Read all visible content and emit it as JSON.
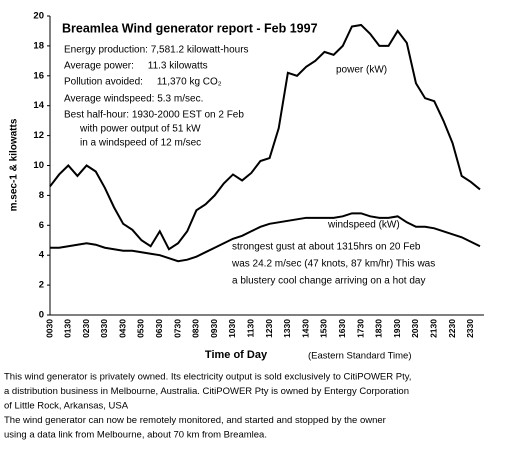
{
  "chart_data": {
    "type": "line",
    "title": "Breamlea Wind generator report - Feb 1997",
    "info_lines": [
      "Energy production: 7,581.2 kilowatt-hours",
      "Average power:     11.3 kilowatts",
      "Pollution avoided:     11,370 kg CO₂",
      "Average windspeed: 5.3 m/sec.",
      "Best half-hour: 1930-2000 EST on 2 Feb",
      "with power output of 51 kW",
      "in a windspeed of 12 m/sec"
    ],
    "y_label": "m.sec-1 & kilowatts",
    "x_label": "Time of Day",
    "x_sublabel": "(Eastern Standard Time)",
    "categories": [
      "0030",
      null,
      "0130",
      null,
      "0230",
      null,
      "0330",
      null,
      "0430",
      null,
      "0530",
      null,
      "0630",
      null,
      "0730",
      null,
      "0830",
      null,
      "0930",
      null,
      "1030",
      null,
      "1130",
      null,
      "1230",
      null,
      "1330",
      null,
      "1430",
      null,
      "1530",
      null,
      "1630",
      null,
      "1730",
      null,
      "1830",
      null,
      "1930",
      null,
      "2030",
      null,
      "2130",
      null,
      "2230",
      null,
      "2330",
      null
    ],
    "series": [
      {
        "name": "power (kW)",
        "color": "#000000",
        "values": [
          8.6,
          9.4,
          10.0,
          9.3,
          10.0,
          9.6,
          8.5,
          7.2,
          6.1,
          5.7,
          5.0,
          4.6,
          5.6,
          4.4,
          4.8,
          5.6,
          7.0,
          7.4,
          8.0,
          8.8,
          9.4,
          9.0,
          9.5,
          10.3,
          10.5,
          12.5,
          16.2,
          16.0,
          16.6,
          17.0,
          17.6,
          17.4,
          18.0,
          19.3,
          19.4,
          18.8,
          18.0,
          18.0,
          19.0,
          18.2,
          15.5,
          14.5,
          14.3,
          13.0,
          11.5,
          9.3,
          8.9,
          8.4
        ]
      },
      {
        "name": "windspeed (kW)",
        "color": "#000000",
        "values": [
          4.5,
          4.5,
          4.6,
          4.7,
          4.8,
          4.7,
          4.5,
          4.4,
          4.3,
          4.3,
          4.2,
          4.1,
          4.0,
          3.8,
          3.6,
          3.7,
          3.9,
          4.2,
          4.5,
          4.8,
          5.1,
          5.3,
          5.6,
          5.9,
          6.1,
          6.2,
          6.3,
          6.4,
          6.5,
          6.5,
          6.5,
          6.5,
          6.6,
          6.8,
          6.8,
          6.6,
          6.5,
          6.5,
          6.6,
          6.2,
          5.9,
          5.9,
          5.8,
          5.6,
          5.4,
          5.2,
          4.9,
          4.6
        ]
      }
    ],
    "annotation": [
      "strongest gust at about 1315hrs on 20 Feb",
      "was 24.2 m/sec (47 knots, 87 km/hr) This was",
      "a blustery cool change arriving on a hot day"
    ],
    "ylim": [
      0,
      20
    ],
    "yticks": [
      0,
      2,
      4,
      6,
      8,
      10,
      12,
      14,
      16,
      18,
      20
    ],
    "grid": false,
    "footer": [
      "This wind generator is privately owned. Its electricity output is sold exclusively to CitiPOWER Pty,",
      "a distribution business in Melbourne, Australia.  CitiPOWER Pty is owned by Entergy Corporation",
      "of Little Rock, Arkansas, USA",
      "The wind generator can now be remotely monitored, and started and stopped by the owner",
      "using a data link from Melbourne, about 70 km from Breamlea."
    ]
  }
}
